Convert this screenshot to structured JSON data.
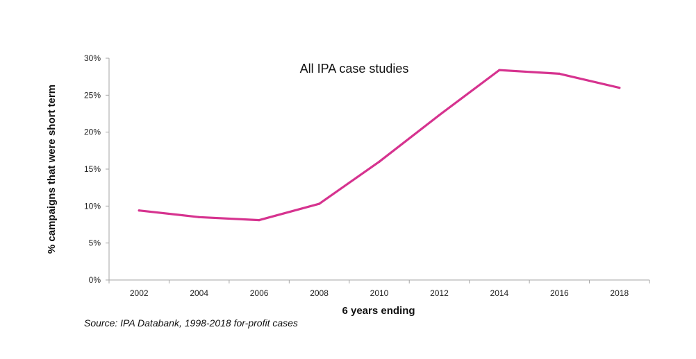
{
  "chart_data": {
    "type": "line",
    "title": "All IPA case studies",
    "xlabel": "6 years ending",
    "ylabel": "% campaigns that were short term",
    "categories": [
      "2002",
      "2004",
      "2006",
      "2008",
      "2010",
      "2012",
      "2014",
      "2016",
      "2018"
    ],
    "series": [
      {
        "name": "All IPA case studies",
        "values": [
          9.4,
          8.5,
          8.1,
          10.3,
          16.0,
          22.3,
          28.4,
          27.9,
          26.0
        ],
        "color": "#d6338f"
      }
    ],
    "ylim": [
      0,
      30
    ],
    "yticks": [
      0,
      5,
      10,
      15,
      20,
      25,
      30
    ],
    "ytick_labels": [
      "0%",
      "5%",
      "10%",
      "15%",
      "20%",
      "25%",
      "30%"
    ],
    "grid": false,
    "legend": "none",
    "source": "Source: IPA Databank, 1998-2018 for-profit cases"
  }
}
